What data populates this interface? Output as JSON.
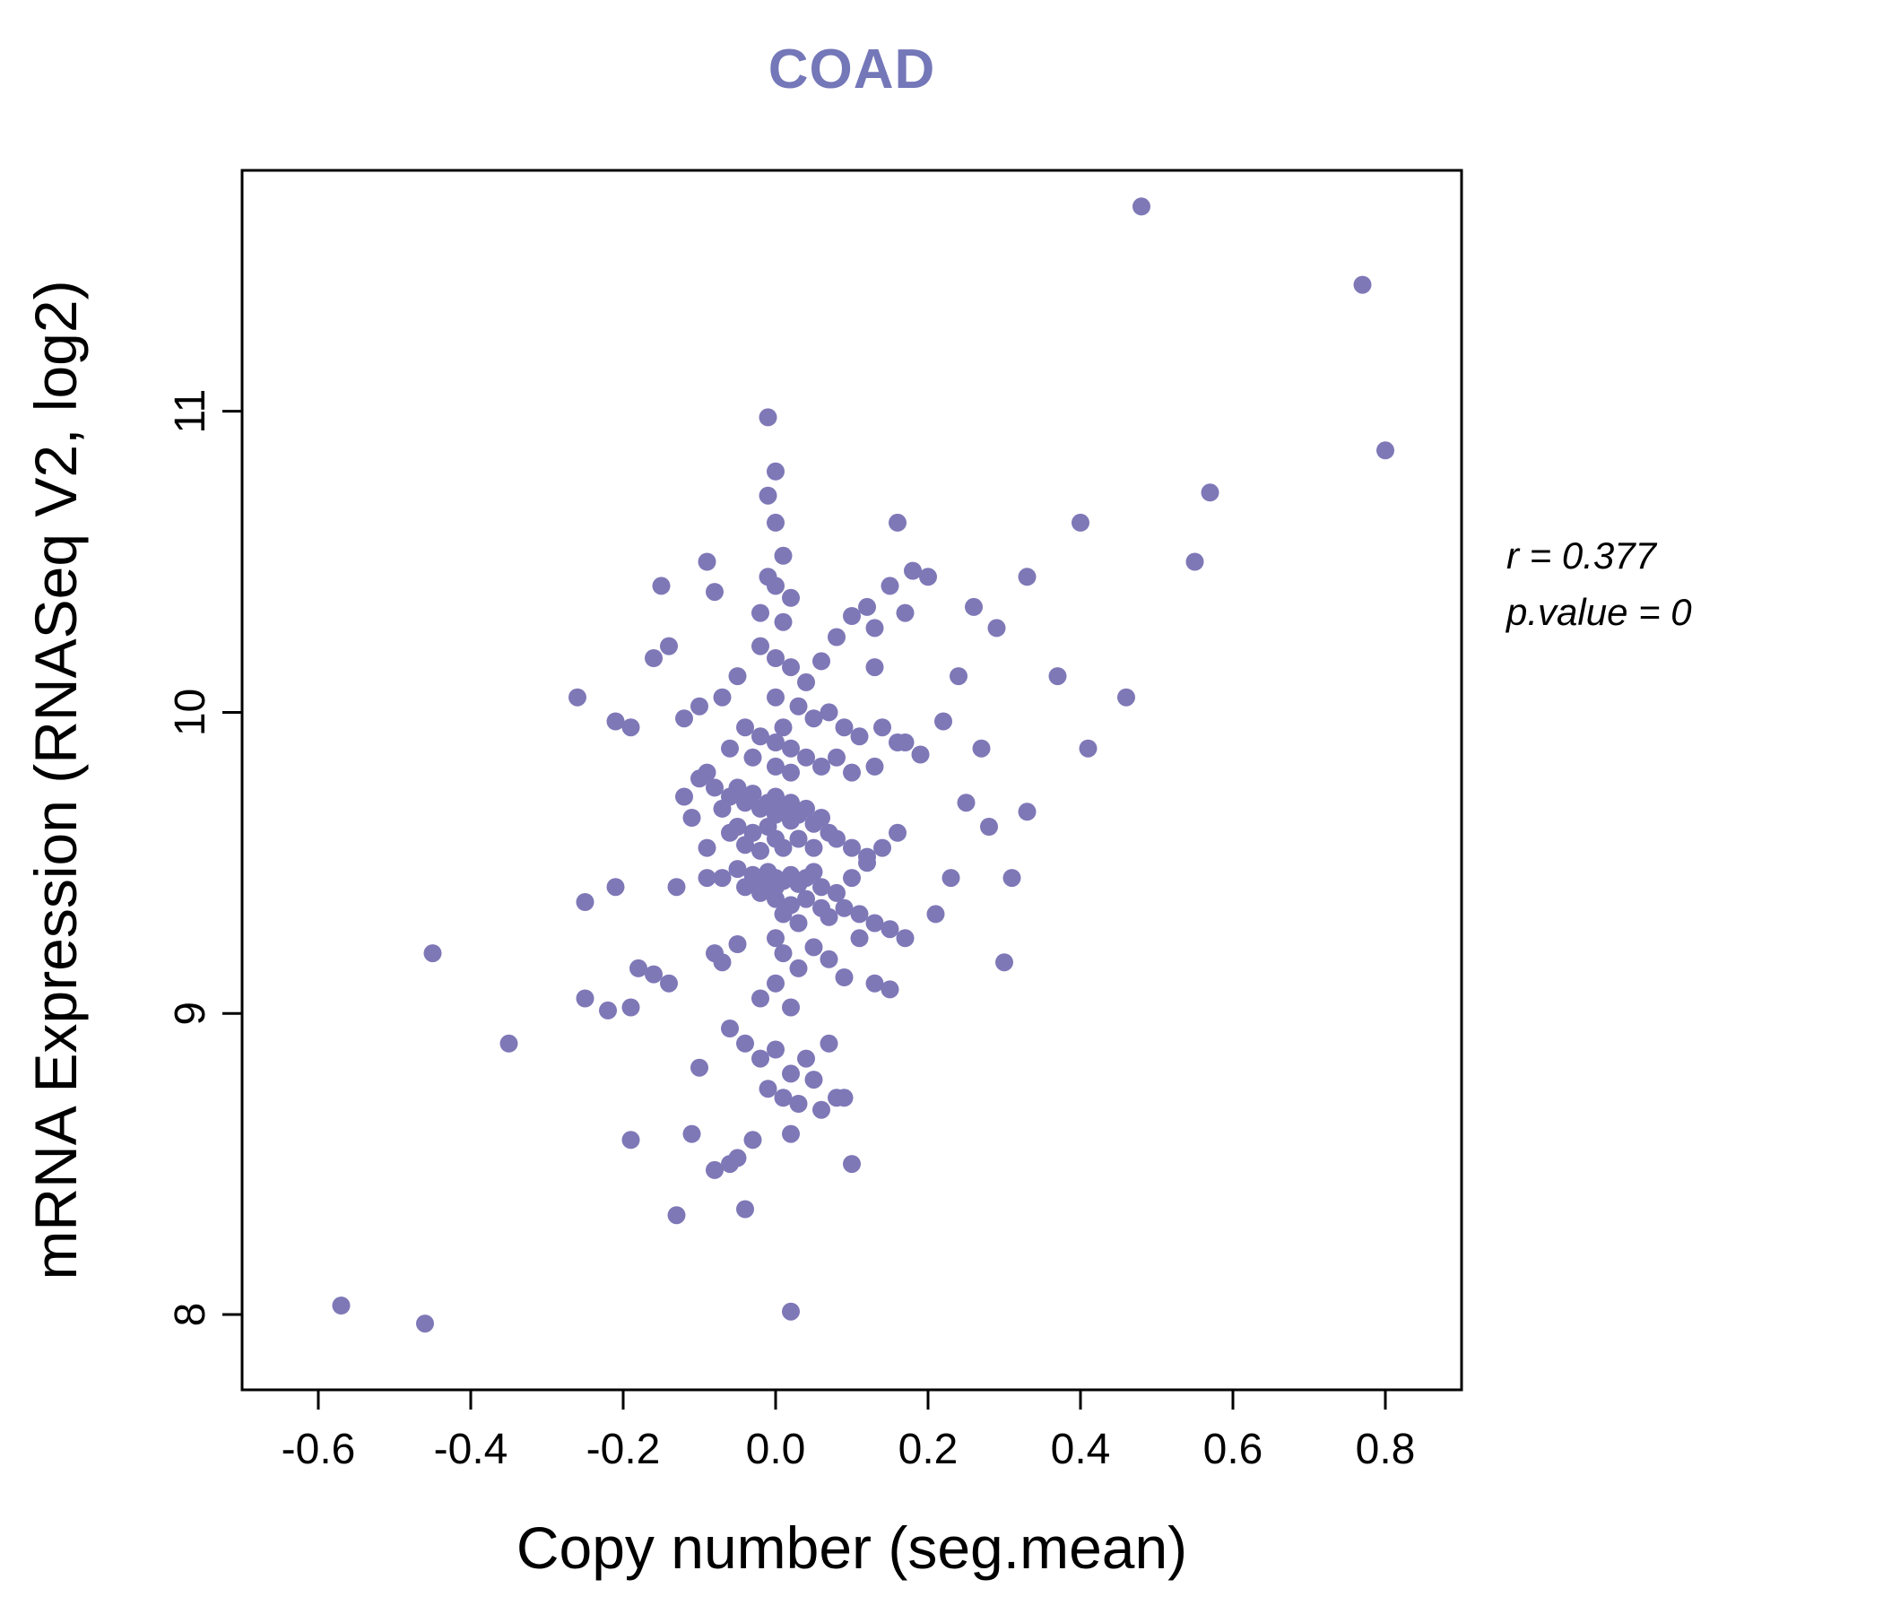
{
  "chart_data": {
    "type": "scatter",
    "title": "COAD",
    "xlabel": "Copy number (seg.mean)",
    "ylabel": "mRNA Expression (RNASeq V2, log2)",
    "xlim": [
      -0.7,
      0.9
    ],
    "ylim": [
      7.75,
      11.8
    ],
    "x_ticks": [
      -0.6,
      -0.4,
      -0.2,
      0.0,
      0.2,
      0.4,
      0.6,
      0.8
    ],
    "x_tick_labels": [
      "-0.6",
      "-0.4",
      "-0.2",
      "0.0",
      "0.2",
      "0.4",
      "0.6",
      "0.8"
    ],
    "y_ticks": [
      8,
      9,
      10,
      11
    ],
    "y_tick_labels": [
      "8",
      "9",
      "10",
      "11"
    ],
    "grid": false,
    "legend": "none",
    "title_color": "#7477b8",
    "point_color": "#7e78b7",
    "annotation": {
      "r_label": "r = 0.377",
      "p_label": "p.value = 0"
    },
    "points": [
      [
        0.48,
        11.68
      ],
      [
        0.77,
        11.42
      ],
      [
        0.8,
        10.87
      ],
      [
        -0.57,
        8.03
      ],
      [
        -0.46,
        7.97
      ],
      [
        0.02,
        8.01
      ],
      [
        -0.13,
        8.33
      ],
      [
        -0.04,
        8.35
      ],
      [
        -0.45,
        9.2
      ],
      [
        -0.35,
        8.9
      ],
      [
        0.57,
        10.73
      ],
      [
        0.55,
        10.5
      ],
      [
        0.4,
        10.63
      ],
      [
        0.46,
        10.05
      ],
      [
        0.37,
        10.12
      ],
      [
        0.41,
        9.88
      ],
      [
        0.33,
        10.45
      ],
      [
        0.3,
        9.17
      ],
      [
        0.33,
        9.67
      ],
      [
        0.31,
        9.45
      ],
      [
        0.28,
        9.62
      ],
      [
        0.27,
        9.88
      ],
      [
        0.29,
        10.28
      ],
      [
        0.26,
        10.35
      ],
      [
        0.24,
        10.12
      ],
      [
        0.22,
        9.97
      ],
      [
        0.25,
        9.7
      ],
      [
        0.23,
        9.45
      ],
      [
        0.21,
        9.33
      ],
      [
        -0.01,
        10.98
      ],
      [
        0.0,
        10.8
      ],
      [
        -0.01,
        10.72
      ],
      [
        0.0,
        10.63
      ],
      [
        0.16,
        10.63
      ],
      [
        0.01,
        10.52
      ],
      [
        -0.01,
        10.45
      ],
      [
        0.0,
        10.42
      ],
      [
        0.02,
        10.38
      ],
      [
        -0.02,
        10.33
      ],
      [
        0.01,
        10.3
      ],
      [
        -0.15,
        10.42
      ],
      [
        -0.09,
        10.5
      ],
      [
        -0.14,
        10.22
      ],
      [
        -0.08,
        10.4
      ],
      [
        0.1,
        10.32
      ],
      [
        0.12,
        10.35
      ],
      [
        0.13,
        10.28
      ],
      [
        0.17,
        10.33
      ],
      [
        0.08,
        10.25
      ],
      [
        0.13,
        10.15
      ],
      [
        0.18,
        10.47
      ],
      [
        0.2,
        10.45
      ],
      [
        0.15,
        10.42
      ],
      [
        -0.02,
        10.22
      ],
      [
        -0.16,
        10.18
      ],
      [
        0.0,
        10.18
      ],
      [
        0.02,
        10.15
      ],
      [
        -0.05,
        10.12
      ],
      [
        0.04,
        10.1
      ],
      [
        -0.26,
        10.05
      ],
      [
        0.06,
        10.17
      ],
      [
        -0.21,
        9.97
      ],
      [
        -0.19,
        9.95
      ],
      [
        -0.12,
        9.98
      ],
      [
        -0.1,
        10.02
      ],
      [
        -0.07,
        10.05
      ],
      [
        0.0,
        10.05
      ],
      [
        0.03,
        10.02
      ],
      [
        0.05,
        9.98
      ],
      [
        0.07,
        10.0
      ],
      [
        0.09,
        9.95
      ],
      [
        0.11,
        9.92
      ],
      [
        0.14,
        9.95
      ],
      [
        0.16,
        9.9
      ],
      [
        0.19,
        9.86
      ],
      [
        -0.04,
        9.95
      ],
      [
        -0.02,
        9.92
      ],
      [
        0.0,
        9.9
      ],
      [
        0.01,
        9.95
      ],
      [
        0.02,
        9.88
      ],
      [
        -0.06,
        9.88
      ],
      [
        -0.03,
        9.85
      ],
      [
        0.0,
        9.82
      ],
      [
        0.02,
        9.8
      ],
      [
        0.04,
        9.85
      ],
      [
        0.06,
        9.82
      ],
      [
        0.08,
        9.85
      ],
      [
        0.1,
        9.8
      ],
      [
        -0.09,
        9.8
      ],
      [
        -0.12,
        9.72
      ],
      [
        0.13,
        9.82
      ],
      [
        0.17,
        9.9
      ],
      [
        -0.1,
        9.78
      ],
      [
        -0.08,
        9.75
      ],
      [
        -0.06,
        9.72
      ],
      [
        -0.05,
        9.75
      ],
      [
        -0.04,
        9.7
      ],
      [
        -0.03,
        9.73
      ],
      [
        -0.02,
        9.68
      ],
      [
        -0.01,
        9.7
      ],
      [
        0.0,
        9.72
      ],
      [
        0.0,
        9.66
      ],
      [
        0.01,
        9.68
      ],
      [
        0.02,
        9.7
      ],
      [
        0.02,
        9.64
      ],
      [
        0.03,
        9.66
      ],
      [
        0.04,
        9.68
      ],
      [
        0.05,
        9.63
      ],
      [
        0.06,
        9.65
      ],
      [
        0.07,
        9.6
      ],
      [
        -0.07,
        9.68
      ],
      [
        -0.11,
        9.65
      ],
      [
        -0.05,
        9.62
      ],
      [
        -0.03,
        9.6
      ],
      [
        -0.01,
        9.62
      ],
      [
        0.0,
        9.58
      ],
      [
        0.01,
        9.55
      ],
      [
        0.03,
        9.58
      ],
      [
        0.05,
        9.55
      ],
      [
        -0.04,
        9.56
      ],
      [
        -0.02,
        9.54
      ],
      [
        0.08,
        9.58
      ],
      [
        0.1,
        9.55
      ],
      [
        0.12,
        9.52
      ],
      [
        0.16,
        9.6
      ],
      [
        0.14,
        9.55
      ],
      [
        -0.06,
        9.6
      ],
      [
        -0.09,
        9.55
      ],
      [
        -0.05,
        9.48
      ],
      [
        -0.03,
        9.46
      ],
      [
        -0.02,
        9.44
      ],
      [
        -0.01,
        9.47
      ],
      [
        0.0,
        9.45
      ],
      [
        0.0,
        9.42
      ],
      [
        0.01,
        9.44
      ],
      [
        0.02,
        9.46
      ],
      [
        0.03,
        9.43
      ],
      [
        0.04,
        9.45
      ],
      [
        0.05,
        9.47
      ],
      [
        0.06,
        9.42
      ],
      [
        -0.04,
        9.42
      ],
      [
        -0.02,
        9.4
      ],
      [
        0.0,
        9.38
      ],
      [
        0.02,
        9.36
      ],
      [
        0.04,
        9.38
      ],
      [
        0.06,
        9.35
      ],
      [
        0.08,
        9.4
      ],
      [
        0.1,
        9.45
      ],
      [
        0.12,
        9.5
      ],
      [
        -0.07,
        9.45
      ],
      [
        -0.09,
        9.45
      ],
      [
        0.01,
        9.33
      ],
      [
        0.03,
        9.3
      ],
      [
        0.13,
        9.3
      ],
      [
        0.15,
        9.28
      ],
      [
        0.17,
        9.25
      ],
      [
        0.11,
        9.33
      ],
      [
        0.09,
        9.35
      ],
      [
        0.07,
        9.32
      ],
      [
        -0.25,
        9.37
      ],
      [
        -0.21,
        9.42
      ],
      [
        -0.13,
        9.42
      ],
      [
        -0.16,
        9.13
      ],
      [
        -0.14,
        9.1
      ],
      [
        -0.08,
        9.2
      ],
      [
        -0.07,
        9.17
      ],
      [
        -0.05,
        9.23
      ],
      [
        -0.18,
        9.15
      ],
      [
        0.0,
        9.25
      ],
      [
        0.01,
        9.2
      ],
      [
        0.03,
        9.15
      ],
      [
        0.05,
        9.22
      ],
      [
        0.07,
        9.18
      ],
      [
        0.09,
        9.12
      ],
      [
        0.11,
        9.25
      ],
      [
        0.13,
        9.1
      ],
      [
        0.0,
        9.1
      ],
      [
        -0.02,
        9.05
      ],
      [
        0.02,
        9.02
      ],
      [
        -0.25,
        9.05
      ],
      [
        -0.22,
        9.01
      ],
      [
        0.15,
        9.08
      ],
      [
        -0.19,
        9.02
      ],
      [
        -0.06,
        8.95
      ],
      [
        -0.04,
        8.9
      ],
      [
        -0.02,
        8.85
      ],
      [
        0.0,
        8.88
      ],
      [
        0.02,
        8.8
      ],
      [
        0.04,
        8.85
      ],
      [
        -0.01,
        8.75
      ],
      [
        0.01,
        8.72
      ],
      [
        0.03,
        8.7
      ],
      [
        0.05,
        8.78
      ],
      [
        0.07,
        8.9
      ],
      [
        0.09,
        8.72
      ],
      [
        0.06,
        8.68
      ],
      [
        0.08,
        8.72
      ],
      [
        -0.1,
        8.82
      ],
      [
        -0.19,
        8.58
      ],
      [
        -0.11,
        8.6
      ],
      [
        -0.06,
        8.5
      ],
      [
        -0.08,
        8.48
      ],
      [
        -0.03,
        8.58
      ],
      [
        0.02,
        8.6
      ],
      [
        0.1,
        8.5
      ],
      [
        -0.05,
        8.52
      ]
    ]
  }
}
